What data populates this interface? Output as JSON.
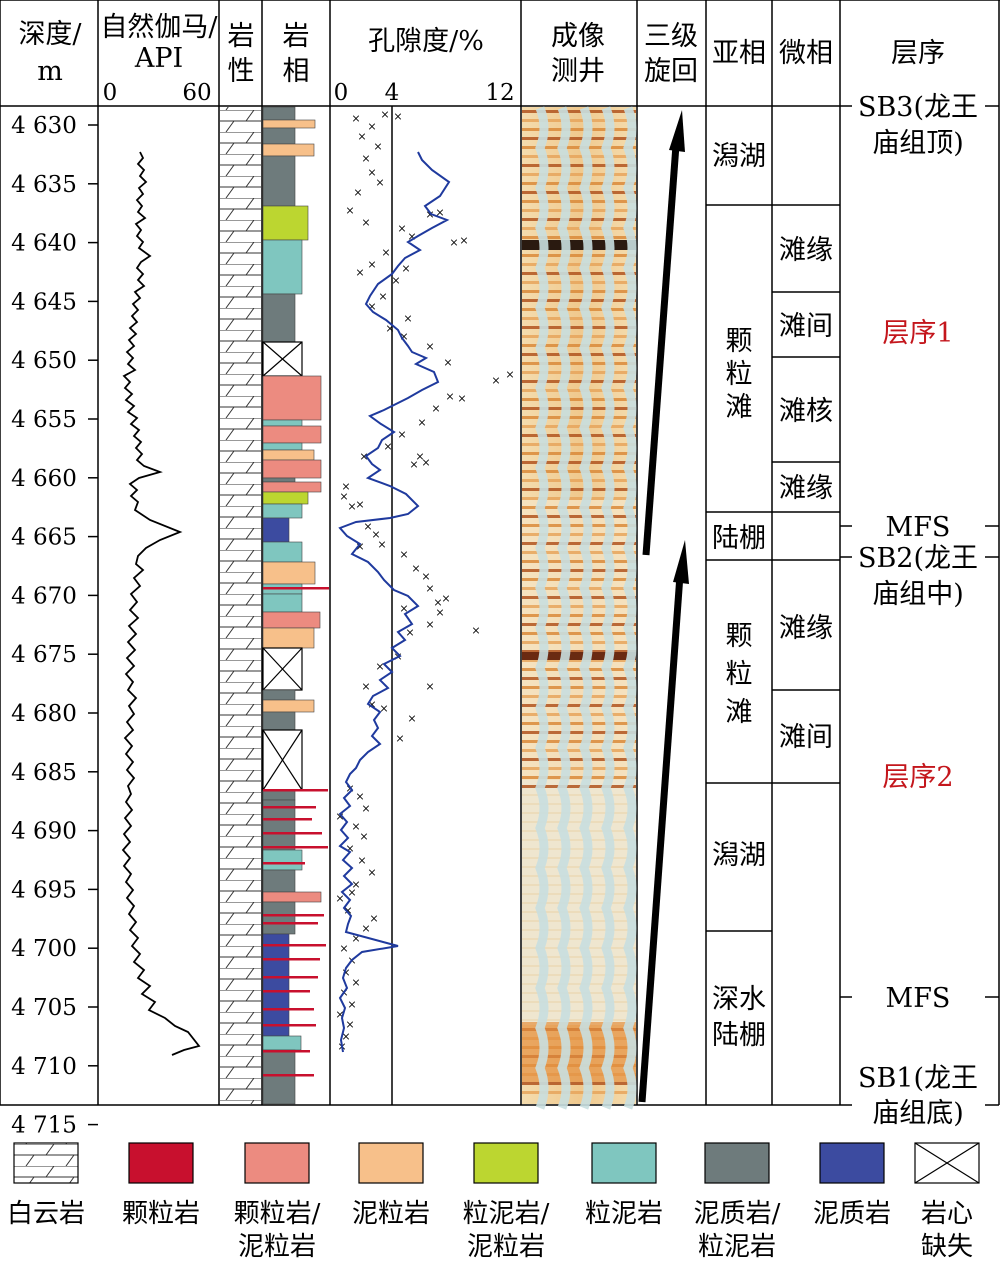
{
  "headers": {
    "depth": [
      "深度/",
      "m"
    ],
    "gamma": [
      "自然伽马/",
      "API"
    ],
    "gamma_scale": [
      "0",
      "60"
    ],
    "lithology": [
      "岩",
      "性"
    ],
    "facies": [
      "岩",
      "相"
    ],
    "porosity": "孔隙度/%",
    "porosity_scale": [
      "0",
      "4",
      "12"
    ],
    "imaging": [
      "成像",
      "测井"
    ],
    "cycle": [
      "三级",
      "旋回"
    ],
    "subfacies": "亚相",
    "microfacies": "微相",
    "sequence": "层序"
  },
  "depth_ticks": [
    "4 630",
    "4 635",
    "4 640",
    "4 645",
    "4 650",
    "4 655",
    "4 660",
    "4 665",
    "4 670",
    "4 675",
    "4 680",
    "4 685",
    "4 690",
    "4 695",
    "4 700",
    "4 705",
    "4 710",
    "4 715"
  ],
  "subfacies": [
    "潟湖",
    "颗粒滩",
    "陆棚",
    "颗粒滩",
    "潟湖",
    "深水陆棚"
  ],
  "microfacies": [
    "滩缘",
    "滩间",
    "滩核",
    "滩缘",
    "滩缘",
    "滩间"
  ],
  "sequences": [
    "层序1",
    "层序2"
  ],
  "surfaces": {
    "sb3": [
      "SB3(龙王",
      "庙组顶)"
    ],
    "mfs1": "MFS",
    "sb2": [
      "SB2(龙王",
      "庙组中)"
    ],
    "mfs2": "MFS",
    "sb1": [
      "SB1(龙王",
      "庙组底)"
    ]
  },
  "legend": [
    {
      "name": "dolomite",
      "label": [
        "白云岩"
      ],
      "color": "#ffffff"
    },
    {
      "name": "grainstone",
      "label": [
        "颗粒岩"
      ],
      "color": "#c8102e"
    },
    {
      "name": "grainstone-packstone",
      "label": [
        "颗粒岩/",
        "泥粒岩"
      ],
      "color": "#ec8b80"
    },
    {
      "name": "packstone",
      "label": [
        "泥粒岩"
      ],
      "color": "#f7c08a"
    },
    {
      "name": "wackestone-packstone",
      "label": [
        "粒泥岩/",
        "泥粒岩"
      ],
      "color": "#bcd630"
    },
    {
      "name": "wackestone",
      "label": [
        "粒泥岩"
      ],
      "color": "#7fc6bf"
    },
    {
      "name": "mudstone-wackestone",
      "label": [
        "泥质岩/",
        "粒泥岩"
      ],
      "color": "#6e7b7c"
    },
    {
      "name": "mudstone",
      "label": [
        "泥质岩"
      ],
      "color": "#3c4ba0"
    },
    {
      "name": "core-missing",
      "label": [
        "岩心",
        "缺失"
      ],
      "color": "#ffffff"
    }
  ],
  "colors": {
    "grainstone": "#c8102e",
    "grainstone_packstone": "#ec8b80",
    "packstone": "#f7c08a",
    "wackestone_packstone": "#bcd630",
    "wackestone": "#7fc6bf",
    "mudstone_wackestone": "#6e7b7c",
    "mudstone": "#3c4ba0",
    "porosity_curve": "#1f3a9e",
    "porosity_points": "#d81e1e",
    "sequence_label": "#c4161c"
  }
}
